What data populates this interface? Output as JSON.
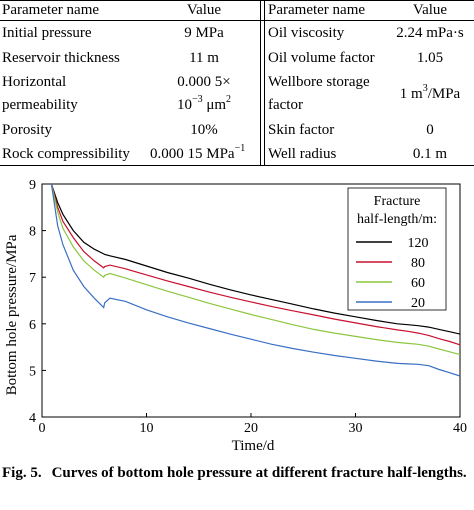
{
  "table": {
    "header": {
      "name": "Parameter name",
      "value": "Value"
    },
    "left_rows": [
      {
        "name": "Initial pressure",
        "value": "9 MPa"
      },
      {
        "name": "Reservoir thickness",
        "value": "11 m"
      },
      {
        "name": "Horizontal",
        "name_line2": "permeability",
        "value": "0.000 5×",
        "value_line2_prefix": "10",
        "value_line2_sup": "−3",
        "value_line2_suffix": " μm",
        "value_line2_sup2": "2"
      },
      {
        "name": "Porosity",
        "value": "10%"
      },
      {
        "name": "Rock compressibility",
        "value_prefix": "0.000 15 MPa",
        "value_sup": "−1"
      }
    ],
    "right_rows": [
      {
        "name": "Oil viscosity",
        "value": "2.24 mPa·s"
      },
      {
        "name": "Oil volume factor",
        "value": "1.05"
      },
      {
        "name": "Wellbore storage",
        "name_line2": "factor",
        "value_prefix": "1 m",
        "value_sup": "3",
        "value_suffix": "/MPa"
      },
      {
        "name": "Skin factor",
        "value": "0"
      },
      {
        "name": "Well radius",
        "value": "0.1 m"
      }
    ]
  },
  "chart_data": {
    "type": "line",
    "xlabel": "Time/d",
    "ylabel": "Bottom hole pressure/MPa",
    "xlim": [
      0,
      40
    ],
    "ylim": [
      4,
      9
    ],
    "xticks": [
      0,
      10,
      20,
      30,
      40
    ],
    "yticks": [
      4,
      5,
      6,
      7,
      8,
      9
    ],
    "grid": false,
    "legend_position": "top-right",
    "legend_title_line1": "Fracture",
    "legend_title_line2": "half-length/m:",
    "series": [
      {
        "name": "120",
        "color": "#000000",
        "x": [
          0.9,
          1.5,
          2,
          3,
          4,
          5,
          5.9,
          6,
          6.5,
          8,
          10,
          12,
          14,
          16,
          18,
          20,
          22,
          24,
          26,
          28,
          30,
          32,
          34,
          35,
          36,
          37,
          38,
          39,
          40
        ],
        "y": [
          9.0,
          8.6,
          8.35,
          8.0,
          7.75,
          7.6,
          7.5,
          7.49,
          7.46,
          7.38,
          7.24,
          7.1,
          6.98,
          6.85,
          6.73,
          6.62,
          6.52,
          6.42,
          6.32,
          6.23,
          6.15,
          6.07,
          6.0,
          5.98,
          5.96,
          5.93,
          5.88,
          5.83,
          5.78
        ]
      },
      {
        "name": "80",
        "color": "#c8102e",
        "x": [
          0.9,
          1.5,
          2,
          3,
          4,
          5,
          5.9,
          6,
          6.5,
          8,
          10,
          12,
          14,
          16,
          18,
          20,
          22,
          24,
          26,
          28,
          30,
          32,
          34,
          35,
          36,
          37,
          38,
          39,
          40
        ],
        "y": [
          9.0,
          8.5,
          8.2,
          7.85,
          7.55,
          7.35,
          7.2,
          7.23,
          7.26,
          7.18,
          7.05,
          6.92,
          6.8,
          6.68,
          6.57,
          6.47,
          6.37,
          6.28,
          6.19,
          6.1,
          6.02,
          5.94,
          5.87,
          5.84,
          5.8,
          5.75,
          5.68,
          5.62,
          5.55
        ]
      },
      {
        "name": "60",
        "color": "#8cc63f",
        "x": [
          0.9,
          1.5,
          2,
          3,
          4,
          5,
          5.9,
          6,
          6.5,
          8,
          10,
          12,
          14,
          16,
          18,
          20,
          22,
          24,
          26,
          28,
          30,
          32,
          34,
          35,
          36,
          37,
          38,
          39,
          40
        ],
        "y": [
          9.0,
          8.4,
          8.05,
          7.65,
          7.35,
          7.15,
          7.0,
          7.04,
          7.08,
          6.98,
          6.84,
          6.7,
          6.57,
          6.44,
          6.32,
          6.2,
          6.09,
          5.98,
          5.88,
          5.8,
          5.73,
          5.66,
          5.6,
          5.58,
          5.56,
          5.52,
          5.46,
          5.4,
          5.34
        ]
      },
      {
        "name": "20",
        "color": "#3a6fc4",
        "x": [
          0.9,
          1.5,
          2,
          3,
          4,
          5,
          5.9,
          6,
          6.5,
          8,
          10,
          12,
          14,
          16,
          18,
          20,
          22,
          24,
          26,
          28,
          30,
          32,
          34,
          35,
          36,
          37,
          38,
          39,
          40
        ],
        "y": [
          9.0,
          8.1,
          7.7,
          7.15,
          6.8,
          6.55,
          6.35,
          6.45,
          6.55,
          6.48,
          6.3,
          6.15,
          6.02,
          5.9,
          5.78,
          5.67,
          5.56,
          5.47,
          5.39,
          5.32,
          5.26,
          5.2,
          5.15,
          5.14,
          5.13,
          5.1,
          5.02,
          4.95,
          4.88
        ]
      }
    ]
  },
  "caption": {
    "label": "Fig. 5.",
    "text": "Curves of bottom hole pressure at different fracture half-lengths."
  }
}
